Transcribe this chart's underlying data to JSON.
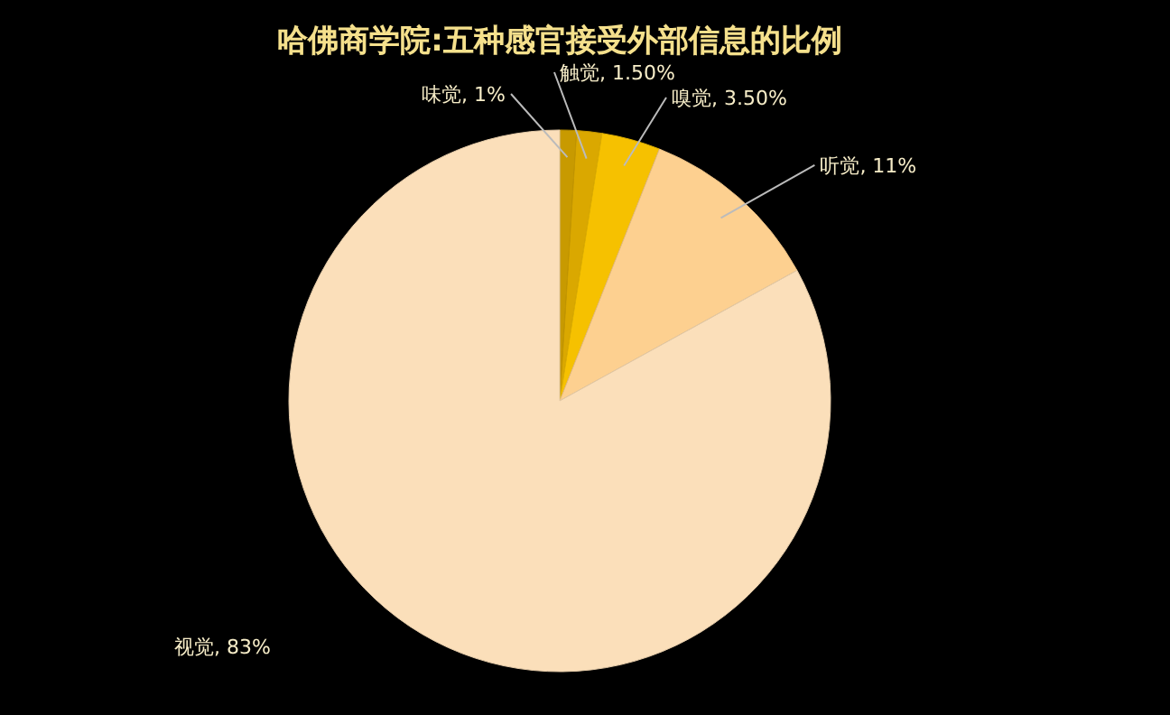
{
  "chart_data": {
    "type": "pie",
    "title": "哈佛商学院:五种感官接受外部信息的比例",
    "categories": [
      "味觉",
      "触觉",
      "嗅觉",
      "听觉",
      "视觉"
    ],
    "values": [
      1,
      1.5,
      3.5,
      11,
      83
    ],
    "value_labels": [
      "1%",
      "1.50%",
      "3.50%",
      "11%",
      "83%"
    ],
    "colors": [
      "#c89a00",
      "#daa800",
      "#f6c100",
      "#fdd090",
      "#fbdfba"
    ]
  }
}
